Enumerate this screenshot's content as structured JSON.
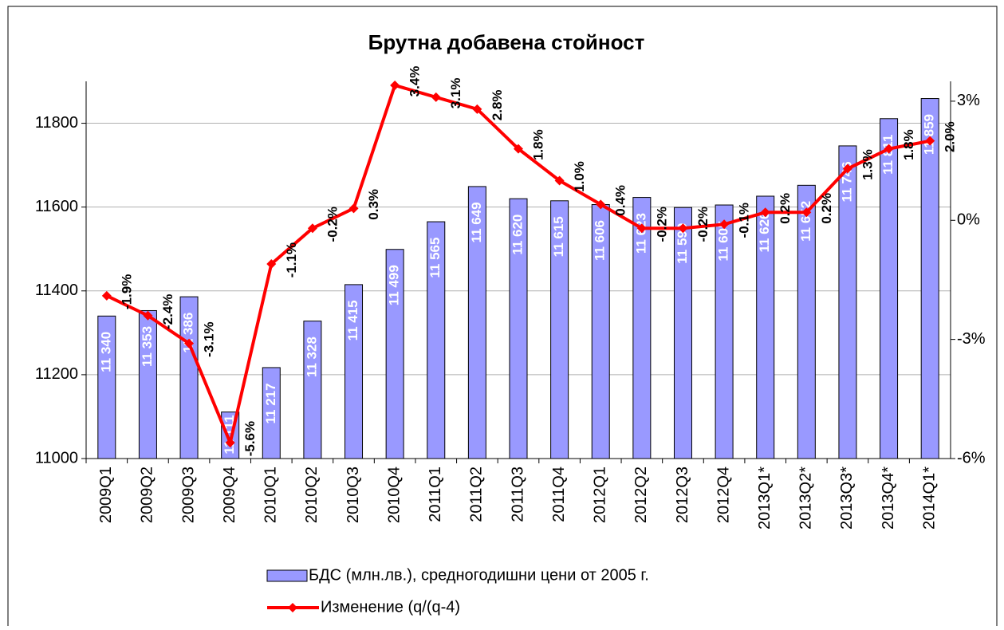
{
  "chart_data": {
    "type": "bar-line",
    "title": "Брутна добавена стойност",
    "categories": [
      "2009Q1",
      "2009Q2",
      "2009Q3",
      "2009Q4",
      "2010Q1",
      "2010Q2",
      "2010Q3",
      "2010Q4",
      "2011Q1",
      "2011Q2",
      "2011Q3",
      "2011Q4",
      "2012Q1",
      "2012Q2",
      "2012Q3",
      "2012Q4",
      "2013Q1*",
      "2013Q2*",
      "2013Q3*",
      "2013Q4*",
      "2014Q1*"
    ],
    "series": [
      {
        "name": "БДС (млн.лв.), средногодишни цени от 2005 г.",
        "type": "bar",
        "color": "#9999ff",
        "values": [
          11340,
          11353,
          11386,
          11111,
          11217,
          11328,
          11415,
          11499,
          11565,
          11649,
          11620,
          11615,
          11606,
          11623,
          11599,
          11605,
          11626,
          11652,
          11746,
          11811,
          11859
        ],
        "value_labels": [
          "11 340",
          "11 353",
          "11 386",
          "11 111",
          "11 217",
          "11 328",
          "11 415",
          "11 499",
          "11 565",
          "11 649",
          "11 620",
          "11 615",
          "11 606",
          "11 623",
          "11 599",
          "11 605",
          "11 626",
          "11 652",
          "11 746",
          "11 811",
          "11 859"
        ]
      },
      {
        "name": "Изменение (q/(q-4)",
        "type": "line",
        "axis": "y2",
        "color": "#ff0000",
        "values": [
          -1.9,
          -2.4,
          -3.1,
          -5.6,
          -1.1,
          -0.2,
          0.3,
          3.4,
          3.1,
          2.8,
          1.8,
          1.0,
          0.4,
          -0.2,
          -0.2,
          -0.1,
          0.2,
          0.2,
          1.3,
          1.8,
          2.0
        ],
        "value_labels": [
          "-1.9%",
          "-2.4%",
          "-3.1%",
          "-5.6%",
          "-1.1%",
          "-0.2%",
          "0.3%",
          "3.4%",
          "3.1%",
          "2.8%",
          "1.8%",
          "1.0%",
          "0.4%",
          "-0.2%",
          "-0.2%",
          "-0.1%",
          "0.2%",
          "0.2%",
          "1.3%",
          "1.8%",
          "2.0%"
        ]
      }
    ],
    "ylim": [
      11000,
      11900
    ],
    "yticks": [
      11000,
      11200,
      11400,
      11600,
      11800
    ],
    "y2lim": [
      -6,
      3.5
    ],
    "y2ticks": [
      {
        "value": -6,
        "label": "-6%"
      },
      {
        "value": -3,
        "label": "-3%"
      },
      {
        "value": 0,
        "label": "0%"
      },
      {
        "value": 3,
        "label": "3%"
      }
    ],
    "grid": true
  }
}
